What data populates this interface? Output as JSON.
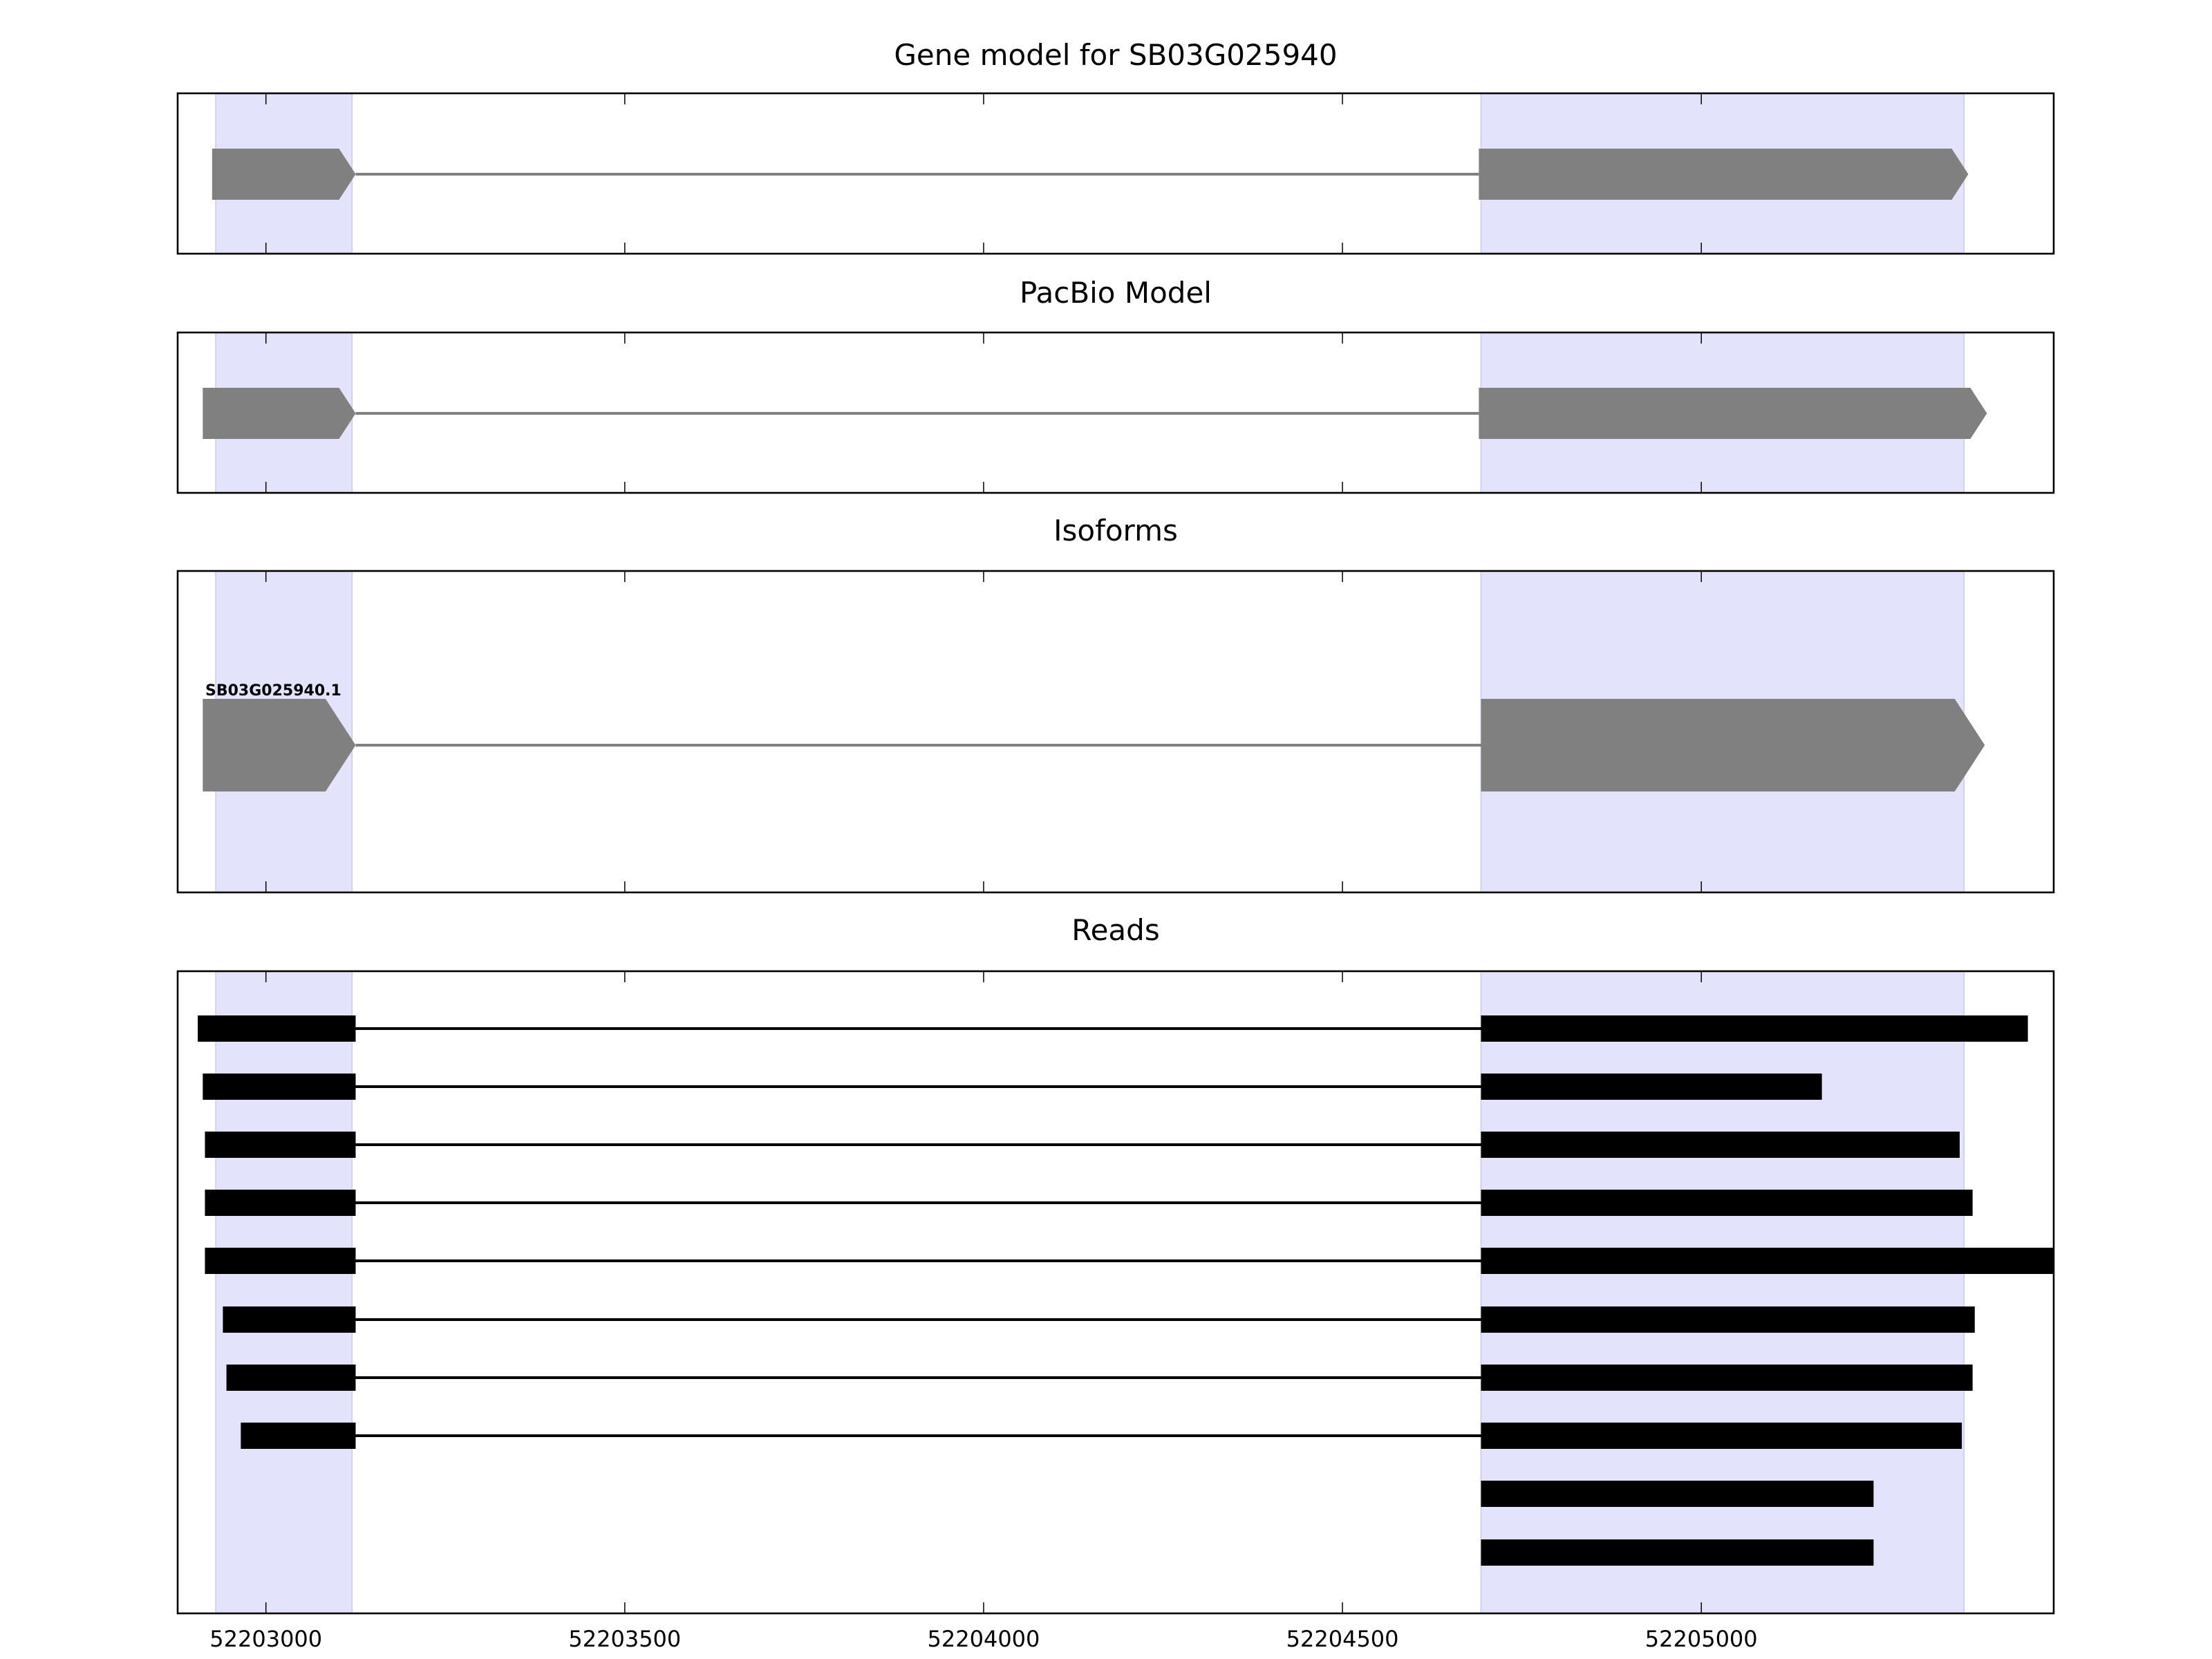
{
  "chart_data": {
    "type": "gene-track",
    "xlim": [
      52202877,
      52205491
    ],
    "tick_values": [
      52203000,
      52203500,
      52204000,
      52204500,
      52205000
    ],
    "tick_labels": [
      "52203000",
      "52203500",
      "52204000",
      "52204500",
      "52205000"
    ],
    "highlight_regions": [
      [
        52202930,
        52203120
      ],
      [
        52204693,
        52205366
      ]
    ],
    "colors": {
      "highlight": "#e3e3fb",
      "model": "#808080",
      "read": "#000000"
    },
    "panels": [
      {
        "key": "gene_model",
        "title": "Gene model for SB03G025940",
        "kind": "model",
        "features": [
          {
            "exons": [
              [
                52202925,
                52203125
              ],
              [
                52204690,
                52205372
              ]
            ],
            "strand": "+"
          }
        ]
      },
      {
        "key": "pacbio_model",
        "title": "PacBio Model",
        "kind": "model",
        "features": [
          {
            "exons": [
              [
                52202912,
                52203125
              ],
              [
                52204690,
                52205398
              ]
            ],
            "strand": "+"
          }
        ]
      },
      {
        "key": "isoforms",
        "title": "Isoforms",
        "kind": "model",
        "features": [
          {
            "label": "SB03G025940.1",
            "exons": [
              [
                52202912,
                52203125
              ],
              [
                52204693,
                52205395
              ]
            ],
            "strand": "+"
          }
        ]
      },
      {
        "key": "reads",
        "title": "Reads",
        "kind": "reads",
        "features": [
          {
            "exons": [
              [
                52202905,
                52203125
              ],
              [
                52204693,
                52205455
              ]
            ]
          },
          {
            "exons": [
              [
                52202912,
                52203125
              ],
              [
                52204693,
                52205168
              ]
            ]
          },
          {
            "exons": [
              [
                52202915,
                52203125
              ],
              [
                52204693,
                52205360
              ]
            ]
          },
          {
            "exons": [
              [
                52202915,
                52203125
              ],
              [
                52204693,
                52205378
              ]
            ]
          },
          {
            "exons": [
              [
                52202915,
                52203125
              ],
              [
                52204693,
                52205491
              ]
            ]
          },
          {
            "exons": [
              [
                52202940,
                52203125
              ],
              [
                52204693,
                52205381
              ]
            ]
          },
          {
            "exons": [
              [
                52202945,
                52203125
              ],
              [
                52204693,
                52205378
              ]
            ]
          },
          {
            "exons": [
              [
                52202965,
                52203125
              ],
              [
                52204693,
                52205363
              ]
            ]
          },
          {
            "exons": [
              [
                52204693,
                52205240
              ]
            ]
          },
          {
            "exons": [
              [
                52204693,
                52205240
              ]
            ]
          }
        ]
      }
    ]
  }
}
